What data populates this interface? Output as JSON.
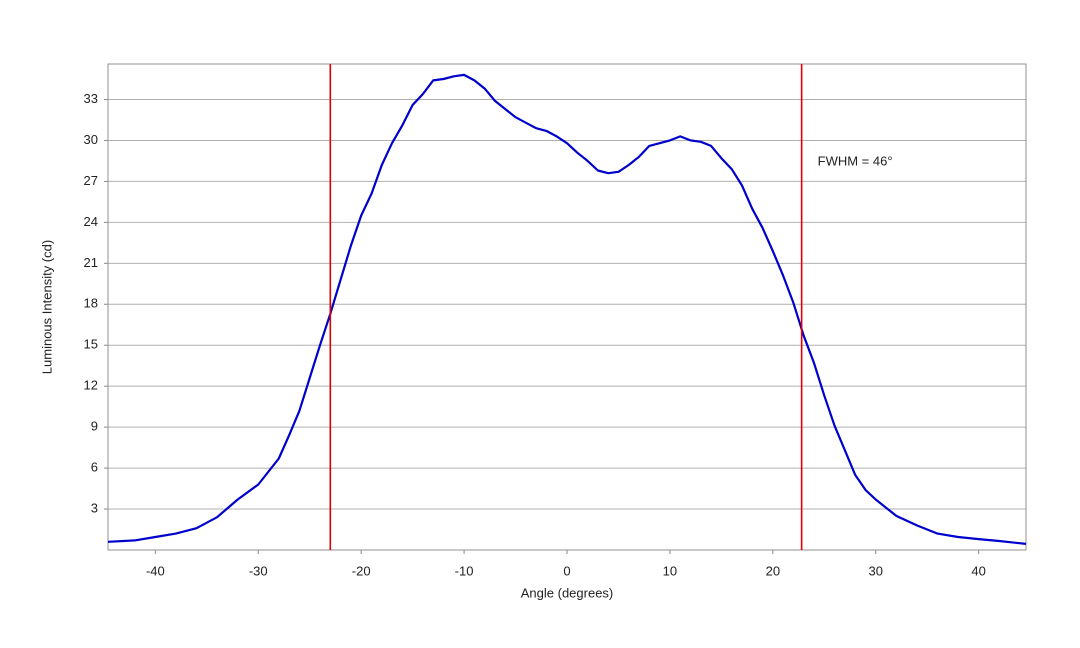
{
  "chart_data": {
    "type": "line",
    "x_label": "Angle (degrees)",
    "y_label": "Luminous Intensity (cd)",
    "annotation": "FWHM = 46°",
    "x": [
      -44.6,
      -42,
      -40,
      -38,
      -36,
      -35,
      -34,
      -32,
      -30,
      -28,
      -27,
      -26,
      -25,
      -24,
      -23,
      -22,
      -21,
      -20,
      -19,
      -18,
      -17,
      -16,
      -15,
      -14,
      -13,
      -12,
      -11,
      -10,
      -9,
      -8,
      -7,
      -6,
      -5,
      -4,
      -3,
      -2,
      -1,
      0,
      1,
      2,
      3,
      4,
      5,
      6,
      7,
      8,
      9,
      10,
      11,
      12,
      13,
      14,
      15,
      16,
      17,
      18,
      19,
      20,
      21,
      22,
      23,
      24,
      25,
      26,
      27,
      28,
      29,
      30,
      32,
      34,
      36,
      38,
      40,
      42,
      44.6
    ],
    "series": [
      {
        "color": "#0000cc",
        "values": [
          0.6,
          0.7,
          0.95,
          1.2,
          1.6,
          2.0,
          2.4,
          3.7,
          4.8,
          6.7,
          8.4,
          10.2,
          12.6,
          15.0,
          17.3,
          19.8,
          22.3,
          24.5,
          26.1,
          28.2,
          29.8,
          31.1,
          32.6,
          33.4,
          34.4,
          34.5,
          34.7,
          34.8,
          34.4,
          33.8,
          32.9,
          32.3,
          31.7,
          31.3,
          30.9,
          30.7,
          30.3,
          29.8,
          29.1,
          28.5,
          27.8,
          27.6,
          27.7,
          28.2,
          28.8,
          29.6,
          29.8,
          30.0,
          30.3,
          30.0,
          29.9,
          29.6,
          28.7,
          27.9,
          26.7,
          25.0,
          23.6,
          21.9,
          20.1,
          18.1,
          15.7,
          13.7,
          11.3,
          9.1,
          7.3,
          5.5,
          4.4,
          3.7,
          2.5,
          1.8,
          1.2,
          0.95,
          0.8,
          0.66,
          0.45
        ]
      }
    ],
    "vlines": {
      "color": "#e00000",
      "x": [
        -23,
        22.8
      ]
    },
    "xlim": [
      -44.6,
      44.6
    ],
    "xticks": [
      -40,
      -30,
      -20,
      -10,
      0,
      10,
      20,
      30,
      40
    ],
    "ylim": [
      0,
      35.6
    ],
    "yticks": [
      3,
      6,
      9,
      12,
      15,
      18,
      21,
      24,
      27,
      30,
      33
    ],
    "grid": true
  }
}
